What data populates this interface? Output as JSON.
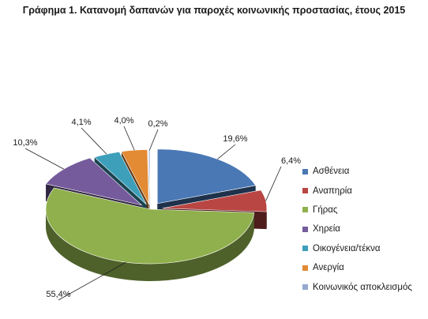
{
  "chart_data": {
    "type": "pie",
    "title": "Γράφημα 1. Κατανομή δαπανών για παροχές κοινωνικής προστασίας, έτους 2015",
    "legend_position": "right",
    "grid": false,
    "style": "3d-exploded",
    "slices": [
      {
        "label": "Ασθένεια",
        "value": 19.6,
        "value_label": "19,6%",
        "color": "#4a78b5"
      },
      {
        "label": "Αναπηρία",
        "value": 6.4,
        "value_label": "6,4%",
        "color": "#b94643"
      },
      {
        "label": "Γήρας",
        "value": 55.4,
        "value_label": "55,4%",
        "color": "#8fb04c"
      },
      {
        "label": "Χηρεία",
        "value": 10.3,
        "value_label": "10,3%",
        "color": "#755b9c"
      },
      {
        "label": "Οικογένεια/τέκνα",
        "value": 4.1,
        "value_label": "4,1%",
        "color": "#3e9fbb"
      },
      {
        "label": "Ανεργία",
        "value": 4.0,
        "value_label": "4,0%",
        "color": "#e38a34"
      },
      {
        "label": "Κοινωνικός αποκλεισμός",
        "value": 0.2,
        "value_label": "0,2%",
        "color": "#94a9d1"
      }
    ]
  }
}
